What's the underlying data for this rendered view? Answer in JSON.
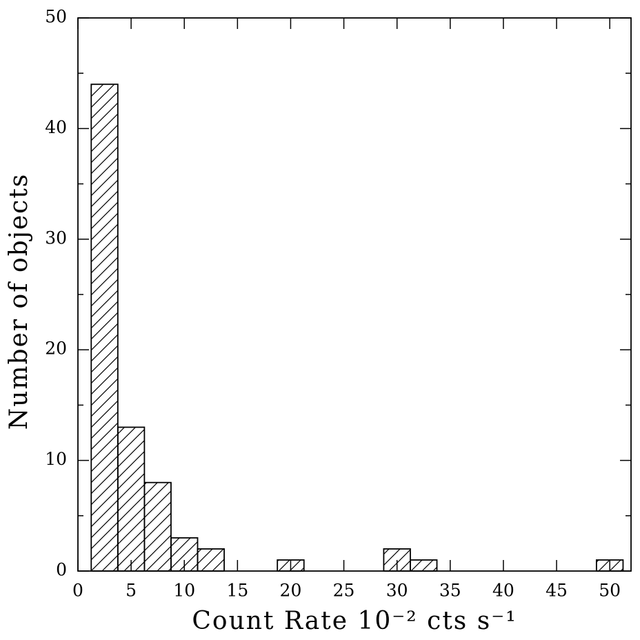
{
  "chart_data": {
    "type": "histogram",
    "xlabel": "Count Rate 10⁻² cts s⁻¹",
    "ylabel": "Number of objects",
    "bins": [
      1.25,
      3.75,
      6.25,
      8.75,
      11.25,
      13.75,
      16.25,
      18.75,
      21.25,
      23.75,
      26.25,
      28.75,
      31.25,
      33.75,
      36.25,
      38.75,
      41.25,
      43.75,
      46.25,
      48.75,
      51.25
    ],
    "values": [
      44,
      13,
      8,
      3,
      2,
      0,
      0,
      1,
      0,
      0,
      0,
      2,
      1,
      0,
      0,
      0,
      0,
      0,
      0,
      1
    ],
    "color": "#000000",
    "xlim": [
      0,
      52
    ],
    "xticks": [
      0,
      5,
      10,
      15,
      20,
      25,
      30,
      35,
      40,
      45,
      50
    ],
    "ylim": [
      0,
      50
    ],
    "yticks": [
      0,
      10,
      20,
      30,
      40,
      50
    ],
    "yminorticks": [
      5,
      15,
      25,
      35,
      45
    ]
  }
}
